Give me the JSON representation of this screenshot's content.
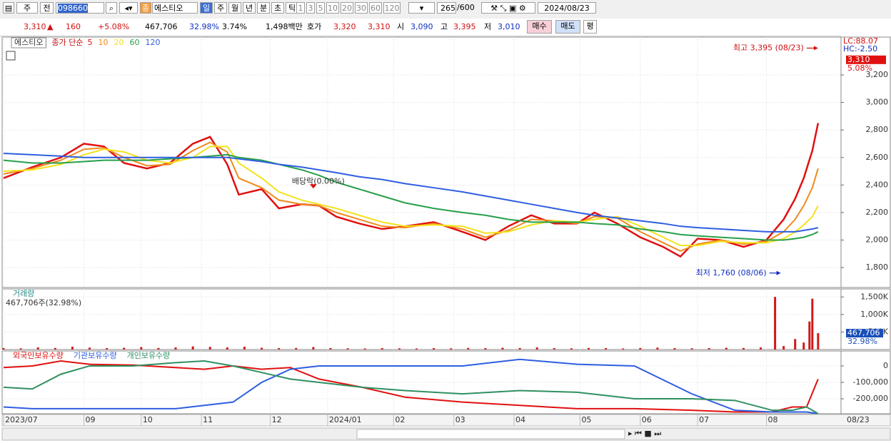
{
  "toolbar": {
    "period_label": "주",
    "view_label": "전",
    "code": "098660",
    "type_badge": "종",
    "name": "에스티오",
    "periods": [
      "일",
      "주",
      "월",
      "년",
      "분",
      "초",
      "틱"
    ],
    "intervals": [
      "1",
      "3",
      "5",
      "10",
      "20",
      "30",
      "60",
      "120"
    ],
    "count": "265",
    "max": "/600",
    "date": "2024/08/23"
  },
  "info_bar": {
    "price": "3,310",
    "arrow": "▲",
    "change": "160",
    "change_pct": "+5.08%",
    "volume": "467,706",
    "volume_ratio": "32.98%",
    "turnover": "3.74%",
    "amount": "1,498백만",
    "quote_label": "호가",
    "ask": "3,320",
    "bid": "3,310",
    "open_label": "시",
    "open": "3,090",
    "high_label": "고",
    "high": "3,395",
    "low_label": "저",
    "low": "3,010",
    "buy": "매수",
    "sell": "매도",
    "avg": "평"
  },
  "chart_data": [
    {
      "type": "line",
      "title": "에스티오",
      "legend_prefix": "종가 단순",
      "header_right": [
        "LC:88.07",
        "HC:-2.50"
      ],
      "price_marker": {
        "value": 3310,
        "label": "3,310"
      },
      "change_label": "5.08%",
      "x": [
        0,
        10,
        20,
        28,
        35,
        42,
        50,
        58,
        66,
        72,
        78,
        82,
        90,
        96,
        104,
        110,
        116,
        124,
        132,
        140,
        150,
        160,
        168,
        176,
        184,
        192,
        200,
        206,
        214,
        222,
        230,
        236,
        242,
        250,
        258,
        266,
        272,
        276,
        279,
        282,
        284
      ],
      "series": [
        {
          "name": "5",
          "color": "#e01010",
          "values": [
            2450,
            2530,
            2600,
            2700,
            2680,
            2560,
            2520,
            2560,
            2700,
            2750,
            2550,
            2330,
            2370,
            2230,
            2260,
            2250,
            2170,
            2120,
            2080,
            2100,
            2130,
            2060,
            2000,
            2100,
            2180,
            2120,
            2120,
            2200,
            2120,
            2020,
            1950,
            1880,
            2010,
            2000,
            1950,
            2000,
            2150,
            2300,
            2450,
            2650,
            2850
          ]
        },
        {
          "name": "10",
          "color": "#f08a1c",
          "values": [
            2480,
            2520,
            2580,
            2660,
            2670,
            2600,
            2540,
            2550,
            2650,
            2710,
            2640,
            2450,
            2380,
            2290,
            2260,
            2250,
            2200,
            2150,
            2100,
            2090,
            2120,
            2080,
            2020,
            2070,
            2150,
            2140,
            2120,
            2170,
            2160,
            2060,
            1980,
            1920,
            1970,
            2000,
            1970,
            1990,
            2060,
            2150,
            2250,
            2380,
            2520
          ]
        },
        {
          "name": "20",
          "color": "#f4e21c",
          "values": [
            2500,
            2510,
            2550,
            2620,
            2660,
            2640,
            2580,
            2560,
            2600,
            2680,
            2680,
            2560,
            2450,
            2350,
            2290,
            2260,
            2230,
            2180,
            2130,
            2100,
            2110,
            2100,
            2050,
            2060,
            2110,
            2140,
            2130,
            2150,
            2170,
            2100,
            2020,
            1960,
            1960,
            1990,
            1980,
            1980,
            2010,
            2060,
            2110,
            2170,
            2250
          ]
        },
        {
          "name": "60",
          "color": "#27a04a",
          "values": [
            2580,
            2560,
            2560,
            2570,
            2580,
            2580,
            2580,
            2590,
            2600,
            2610,
            2620,
            2600,
            2580,
            2550,
            2510,
            2470,
            2420,
            2370,
            2320,
            2270,
            2230,
            2200,
            2180,
            2150,
            2130,
            2130,
            2130,
            2120,
            2110,
            2080,
            2060,
            2040,
            2030,
            2020,
            2010,
            2000,
            2000,
            2010,
            2020,
            2040,
            2060
          ]
        },
        {
          "name": "120",
          "color": "#2f5ee0",
          "values": [
            2630,
            2620,
            2610,
            2600,
            2600,
            2600,
            2600,
            2600,
            2600,
            2600,
            2600,
            2590,
            2570,
            2550,
            2530,
            2510,
            2490,
            2460,
            2440,
            2410,
            2380,
            2350,
            2320,
            2290,
            2260,
            2230,
            2200,
            2180,
            2160,
            2140,
            2120,
            2100,
            2090,
            2080,
            2070,
            2060,
            2060,
            2060,
            2070,
            2080,
            2090
          ]
        }
      ],
      "annotations": [
        {
          "text": "최고 3,395 (08/23)",
          "x": 284,
          "value": 3395,
          "color": "#d01010"
        },
        {
          "text": "최저 1,760 (08/06)",
          "x": 271,
          "value": 1760,
          "color": "#1030c0"
        },
        {
          "text": "배당락(0.00%)",
          "x": 108
        }
      ],
      "ylim": [
        1655,
        3475
      ],
      "yticks": [
        {
          "value": 1800,
          "label": "1,800"
        },
        {
          "value": 2000,
          "label": "2,000"
        },
        {
          "value": 2200,
          "label": "2,200"
        },
        {
          "value": 2400,
          "label": "2,400"
        },
        {
          "value": 2600,
          "label": "2,600"
        },
        {
          "value": 2800,
          "label": "2,800"
        },
        {
          "value": 3000,
          "label": "3,000"
        },
        {
          "value": 3200,
          "label": "3,200"
        }
      ],
      "grid": true
    },
    {
      "type": "bar",
      "title": "거래량",
      "subtitle": "467,706주(32.98%)",
      "color": "#d01818",
      "current_marker": {
        "value": 467706,
        "label": "467,706"
      },
      "ratio_label": "32.98%",
      "x": [
        0,
        6,
        12,
        18,
        24,
        30,
        36,
        42,
        48,
        54,
        60,
        66,
        72,
        78,
        84,
        90,
        96,
        102,
        108,
        114,
        120,
        126,
        132,
        138,
        144,
        150,
        156,
        162,
        168,
        174,
        180,
        186,
        192,
        198,
        204,
        210,
        216,
        222,
        228,
        234,
        240,
        246,
        252,
        258,
        264,
        269,
        272,
        276,
        279,
        281,
        282,
        284
      ],
      "values": [
        40000,
        35000,
        60000,
        45000,
        80000,
        55000,
        40000,
        50000,
        70000,
        45000,
        60000,
        90000,
        75000,
        60000,
        80000,
        50000,
        40000,
        45000,
        70000,
        40000,
        35000,
        30000,
        40000,
        35000,
        30000,
        40000,
        35000,
        45000,
        40000,
        50000,
        45000,
        60000,
        40000,
        35000,
        45000,
        40000,
        30000,
        45000,
        55000,
        40000,
        35000,
        40000,
        50000,
        45000,
        60000,
        1500000,
        100000,
        300000,
        200000,
        800000,
        1450000,
        467706
      ],
      "ylim": [
        0,
        1729000
      ],
      "yticks": [
        {
          "value": 500000,
          "label": "500K"
        },
        {
          "value": 1000000,
          "label": "1,000K"
        },
        {
          "value": 1500000,
          "label": "1,500K"
        }
      ],
      "grid": true
    },
    {
      "type": "line",
      "x": [
        0,
        10,
        20,
        30,
        45,
        60,
        70,
        80,
        90,
        100,
        110,
        125,
        140,
        160,
        180,
        200,
        220,
        240,
        255,
        268,
        275,
        280,
        284
      ],
      "series": [
        {
          "name": "외국인보유수량",
          "color": "#e01010",
          "values": [
            -10000,
            0,
            30000,
            10000,
            5000,
            -10000,
            -20000,
            0,
            -20000,
            -10000,
            -80000,
            -130000,
            -190000,
            -220000,
            -240000,
            -260000,
            -260000,
            -270000,
            -280000,
            -280000,
            -250000,
            -250000,
            -80000
          ]
        },
        {
          "name": "기관보유수량",
          "color": "#2f5ee0",
          "values": [
            -250000,
            -260000,
            -260000,
            -260000,
            -260000,
            -260000,
            -240000,
            -220000,
            -100000,
            -20000,
            0,
            0,
            0,
            0,
            40000,
            10000,
            0,
            -170000,
            -270000,
            -280000,
            -280000,
            -280000,
            -290000
          ]
        },
        {
          "name": "개인보유수량",
          "color": "#2f9060",
          "values": [
            -130000,
            -140000,
            -50000,
            0,
            0,
            20000,
            30000,
            0,
            -40000,
            -80000,
            -100000,
            -130000,
            -150000,
            -170000,
            -150000,
            -160000,
            -200000,
            -200000,
            -210000,
            -270000,
            -270000,
            -250000,
            -290000
          ]
        }
      ],
      "ylim": [
        -291000,
        91000
      ],
      "yticks": [
        0,
        {
          "value": -100000,
          "label": "-100,000"
        },
        {
          "value": -200000,
          "label": "-200,000"
        }
      ],
      "xlim": [
        0,
        292
      ],
      "xticks": [
        {
          "value": 0,
          "label": "2023/07"
        },
        {
          "value": 28,
          "label": "09"
        },
        {
          "value": 48,
          "label": "10"
        },
        {
          "value": 69,
          "label": "11"
        },
        {
          "value": 93,
          "label": "12"
        },
        {
          "value": 113,
          "label": "2024/01"
        },
        {
          "value": 136,
          "label": "02"
        },
        {
          "value": 157,
          "label": "03"
        },
        {
          "value": 178,
          "label": "04"
        },
        {
          "value": 201,
          "label": "05"
        },
        {
          "value": 222,
          "label": "06"
        },
        {
          "value": 242,
          "label": "07"
        },
        {
          "value": 266,
          "label": "08"
        }
      ],
      "last_date_label": "08/23",
      "grid": true
    }
  ]
}
